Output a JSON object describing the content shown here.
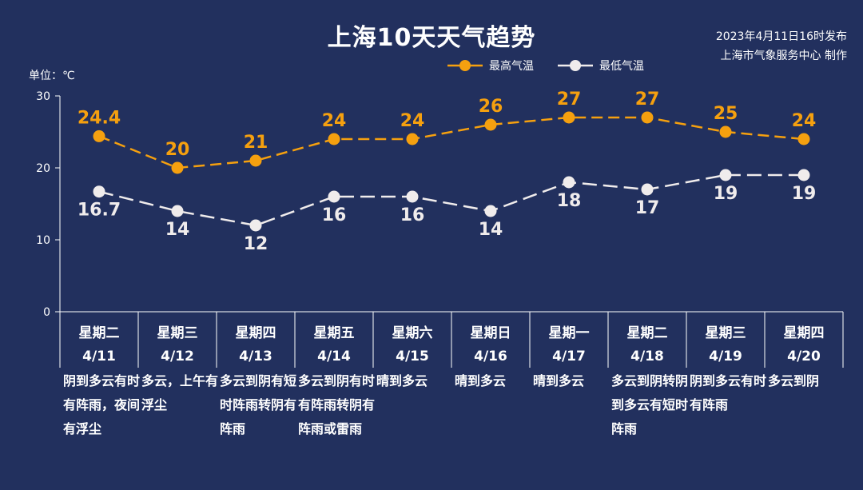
{
  "header": {
    "title": "上海10天天气趋势",
    "publish_time": "2023年4月11日16时发布",
    "publisher": "上海市气象服务中心 制作",
    "unit": "单位：℃"
  },
  "colors": {
    "background": "#22305e",
    "high": "#f5a00f",
    "low": "#f0ecec",
    "axis": "#ffffff"
  },
  "chart_data": {
    "type": "line",
    "title": "上海10天天气趋势",
    "ylabel": "单位：℃",
    "ylim": [
      0,
      30
    ],
    "yticks": [
      0,
      10,
      20,
      30
    ],
    "legend_position": "top-right",
    "grid": false,
    "categories": [
      "星期二 4/11",
      "星期三 4/12",
      "星期四 4/13",
      "星期五 4/14",
      "星期六 4/15",
      "星期日 4/16",
      "星期一 4/17",
      "星期二 4/18",
      "星期三 4/19",
      "星期四 4/20"
    ],
    "weekdays": [
      "星期二",
      "星期三",
      "星期四",
      "星期五",
      "星期六",
      "星期日",
      "星期一",
      "星期二",
      "星期三",
      "星期四"
    ],
    "dates": [
      "4/11",
      "4/12",
      "4/13",
      "4/14",
      "4/15",
      "4/16",
      "4/17",
      "4/18",
      "4/19",
      "4/20"
    ],
    "series": [
      {
        "name": "最高气温",
        "values": [
          24.4,
          20,
          21,
          24,
          24,
          26,
          27,
          27,
          25,
          24
        ],
        "labels": [
          "24.4",
          "20",
          "21",
          "24",
          "24",
          "26",
          "27",
          "27",
          "25",
          "24"
        ]
      },
      {
        "name": "最低气温",
        "values": [
          16.7,
          14,
          12,
          16,
          16,
          14,
          18,
          17,
          19,
          19
        ],
        "labels": [
          "16.7",
          "14",
          "12",
          "16",
          "16",
          "14",
          "18",
          "17",
          "19",
          "19"
        ]
      }
    ],
    "conditions": [
      "阴到多云有时有阵雨，夜间有浮尘",
      "多云，上午有浮尘",
      "多云到阴有短时阵雨转阴有阵雨",
      "多云到阴有时有阵雨转阴有阵雨或雷雨",
      "晴到多云",
      "晴到多云",
      "晴到多云",
      "多云到阴转阴到多云有短时阵雨",
      "阴到多云有时有阵雨",
      "多云到阴"
    ]
  }
}
